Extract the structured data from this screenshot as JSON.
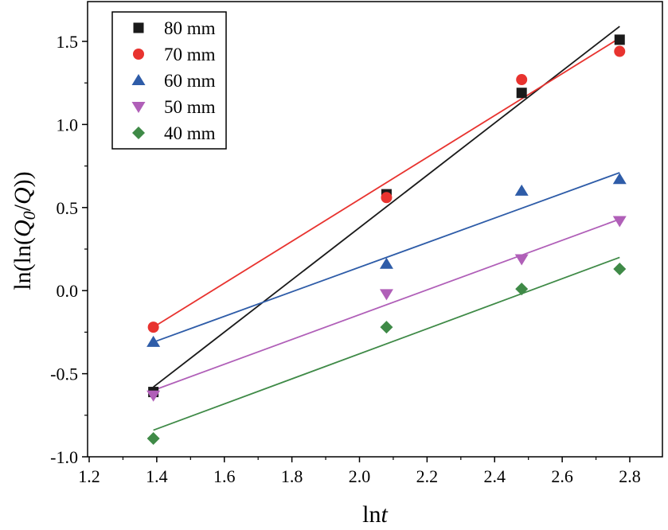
{
  "chart_data": {
    "type": "scatter",
    "xlabel_main": "ln",
    "xlabel_italic": "t",
    "ylabel": "ln(ln(Q0/Q))",
    "ylabel_parts": {
      "prefix": "ln(ln(",
      "q0_letter": "Q",
      "q0_sub": "0",
      "slash": "/",
      "q": "Q",
      "suffix": "))"
    },
    "xlim": [
      1.2,
      2.9
    ],
    "ylim": [
      -1.0,
      1.75
    ],
    "xticks": [
      1.2,
      1.4,
      1.6,
      1.8,
      2.0,
      2.2,
      2.4,
      2.6,
      2.8
    ],
    "yticks": [
      -1.0,
      -0.5,
      0.0,
      0.5,
      1.0,
      1.5
    ],
    "xtick_labels": [
      "1.2",
      "1.4",
      "1.6",
      "1.8",
      "2.0",
      "2.2",
      "2.4",
      "2.6",
      "2.8"
    ],
    "ytick_labels": [
      "-1.0",
      "-0.5",
      "0.0",
      "0.5",
      "1.0",
      "1.5"
    ],
    "grid": false,
    "legend_position": "top-left",
    "x": [
      1.39,
      2.08,
      2.48,
      2.77
    ],
    "series": [
      {
        "name": "80 mm",
        "marker": "square",
        "color": "#1a1a1a",
        "values": [
          -0.61,
          0.58,
          1.19,
          1.51
        ],
        "fit": {
          "x": [
            1.39,
            2.77
          ],
          "y": [
            -0.58,
            1.59
          ]
        }
      },
      {
        "name": "70 mm",
        "marker": "circle",
        "color": "#e8332f",
        "values": [
          -0.22,
          0.56,
          1.27,
          1.44
        ],
        "fit": {
          "x": [
            1.39,
            2.77
          ],
          "y": [
            -0.22,
            1.52
          ]
        }
      },
      {
        "name": "60 mm",
        "marker": "triangle-up",
        "color": "#2e5ca8",
        "values": [
          -0.31,
          0.16,
          0.6,
          0.67
        ],
        "fit": {
          "x": [
            1.39,
            2.77
          ],
          "y": [
            -0.31,
            0.71
          ]
        }
      },
      {
        "name": "50 mm",
        "marker": "triangle-down",
        "color": "#b05fb8",
        "values": [
          -0.63,
          -0.02,
          0.19,
          0.42
        ],
        "fit": {
          "x": [
            1.39,
            2.77
          ],
          "y": [
            -0.6,
            0.43
          ]
        }
      },
      {
        "name": "40 mm",
        "marker": "diamond",
        "color": "#3f8a47",
        "values": [
          -0.89,
          -0.22,
          0.01,
          0.13
        ],
        "fit": {
          "x": [
            1.39,
            2.77
          ],
          "y": [
            -0.84,
            0.2
          ]
        }
      }
    ]
  }
}
